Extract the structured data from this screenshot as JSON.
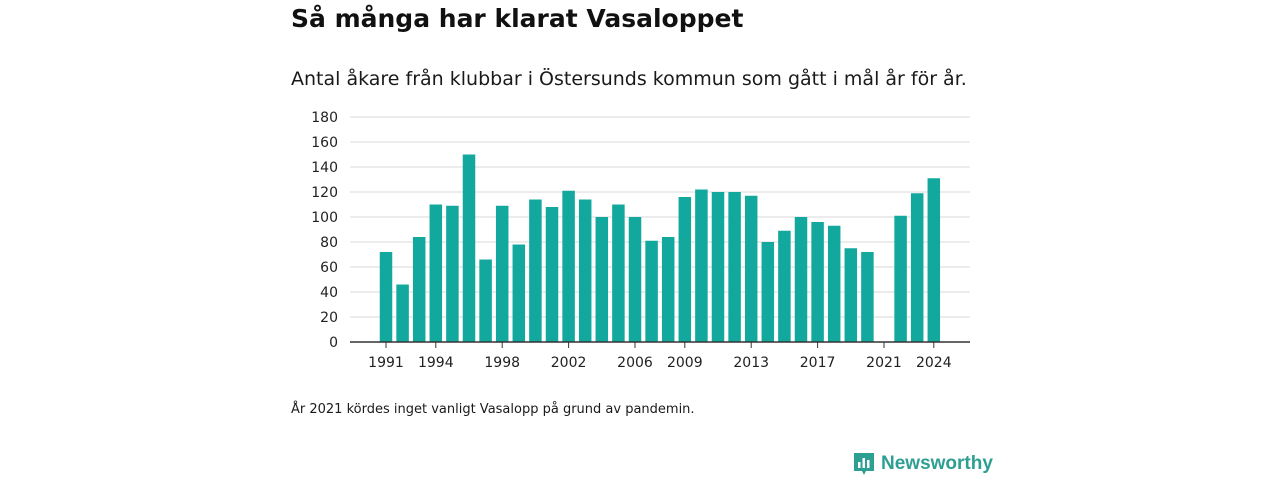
{
  "title": "Så många har klarat Vasaloppet",
  "subtitle": "Antal åkare från klubbar i Östersunds kommun som gått i mål år för år.",
  "note": "År 2021 kördes inget vanligt Vasalopp på grund av pandemin.",
  "brand": {
    "name": "Newsworthy",
    "icon": "newsworthy-logo-icon"
  },
  "colors": {
    "bar": "#13a89e",
    "grid": "#d9d9d9",
    "axis": "#333333"
  },
  "chart_data": {
    "type": "bar",
    "x": [
      1991,
      1992,
      1993,
      1994,
      1995,
      1996,
      1997,
      1998,
      1999,
      2000,
      2001,
      2002,
      2003,
      2004,
      2005,
      2006,
      2007,
      2008,
      2009,
      2010,
      2011,
      2012,
      2013,
      2014,
      2015,
      2016,
      2017,
      2018,
      2019,
      2020,
      2021,
      2022,
      2023,
      2024
    ],
    "values": [
      72,
      46,
      84,
      110,
      109,
      150,
      66,
      109,
      78,
      114,
      108,
      121,
      114,
      100,
      110,
      100,
      81,
      84,
      116,
      122,
      120,
      120,
      117,
      80,
      89,
      100,
      96,
      93,
      75,
      72,
      0,
      101,
      119,
      131
    ],
    "x_tick_labels": [
      "1991",
      "1994",
      "1998",
      "2002",
      "2006",
      "2009",
      "2013",
      "2017",
      "2021",
      "2024"
    ],
    "y_tick_labels": [
      "0",
      "20",
      "40",
      "60",
      "80",
      "100",
      "120",
      "140",
      "160",
      "180"
    ],
    "ylim": [
      0,
      180
    ],
    "grid": true
  }
}
